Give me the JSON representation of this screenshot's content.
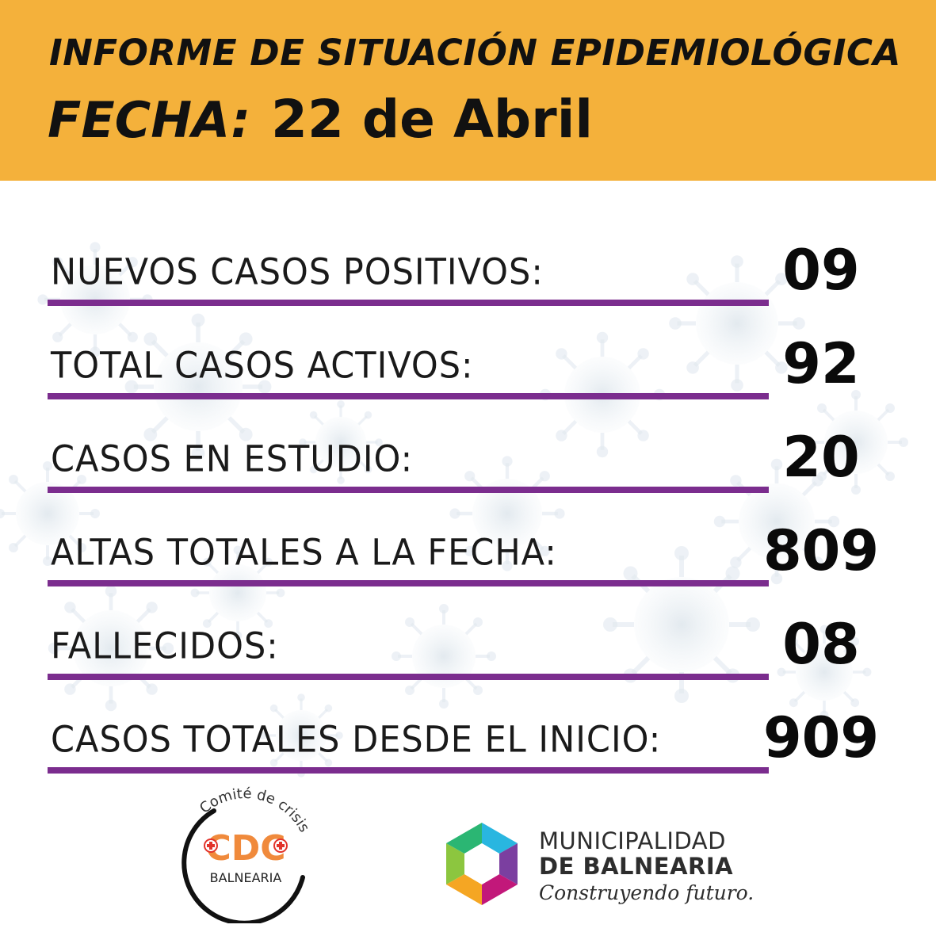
{
  "header": {
    "title": "INFORME DE SITUACIÓN EPIDEMIOLÓGICA",
    "date_label": "FECHA:",
    "date_value": "22 de Abril"
  },
  "stats": [
    {
      "label": "NUEVOS CASOS POSITIVOS:",
      "value": "09"
    },
    {
      "label": "TOTAL CASOS ACTIVOS:",
      "value": "92"
    },
    {
      "label": "CASOS EN ESTUDIO:",
      "value": "20"
    },
    {
      "label": "ALTAS TOTALES A LA FECHA:",
      "value": "809"
    },
    {
      "label": "FALLECIDOS:",
      "value": "08"
    },
    {
      "label": "CASOS TOTALES DESDE EL INICIO:",
      "value": "909"
    }
  ],
  "logos": {
    "cdc": {
      "arc_text": "Comité de crisis",
      "letters": "CDC",
      "place": "BALNEARIA"
    },
    "municipality": {
      "line1": "MUNICIPALIDAD",
      "line2": "DE BALNEARIA",
      "slogan": "Construyendo futuro."
    }
  },
  "colors": {
    "header_bg": "#f4b13b",
    "underline": "#7b2d8e",
    "cdc_orange": "#f08a3c",
    "cdc_red": "#e2332b"
  }
}
